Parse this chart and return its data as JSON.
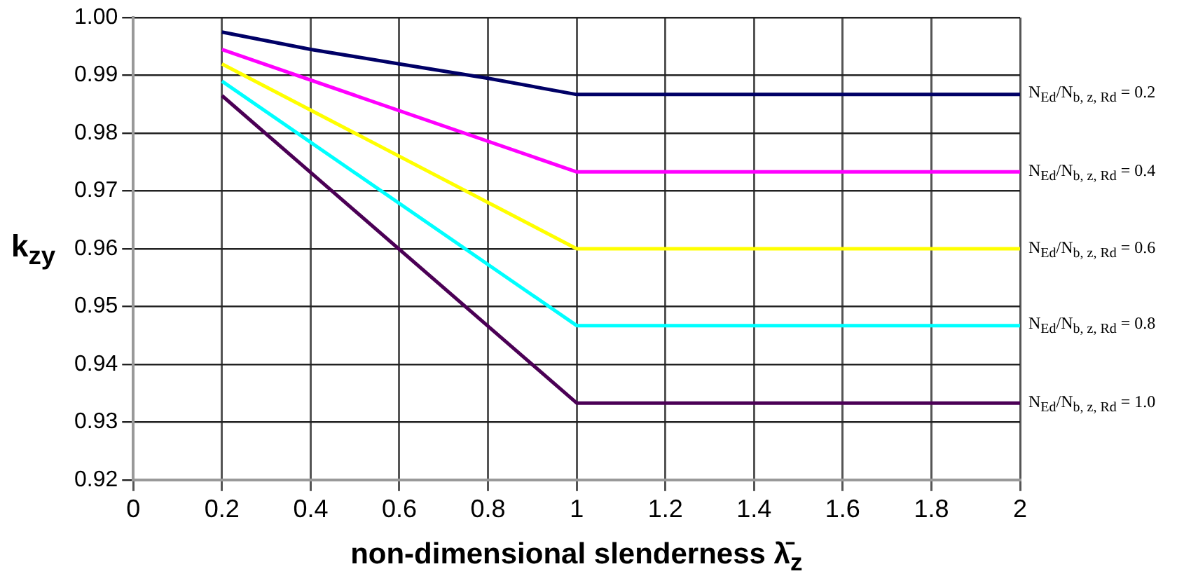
{
  "chart_data": {
    "type": "line",
    "xlabel": "non-dimensional slenderness λ̄$_{z}$",
    "ylabel": "k$_{zy}$",
    "xlim": [
      0,
      2
    ],
    "xticks": [
      0,
      0.2,
      0.4,
      0.6,
      0.8,
      1,
      1.2,
      1.4,
      1.6,
      1.8,
      2
    ],
    "ylim": [
      0.92,
      1.0
    ],
    "yticks": [
      {
        "value": 0.92,
        "label": "0.92"
      },
      {
        "value": 0.93,
        "label": "0.93"
      },
      {
        "value": 0.94,
        "label": "0.94"
      },
      {
        "value": 0.95,
        "label": "0.95"
      },
      {
        "value": 0.96,
        "label": "0.96"
      },
      {
        "value": 0.97,
        "label": "0.97"
      },
      {
        "value": 0.98,
        "label": "0.98"
      },
      {
        "value": 0.99,
        "label": "0.99"
      },
      {
        "value": 1.0,
        "label": "1.00"
      }
    ],
    "grid": true,
    "legend": false,
    "marker": "none",
    "line_style": "solid",
    "series": [
      {
        "name": "N$_{Ed}$/N$_{b, z, Rd}$ = 0.2",
        "color": "#000066",
        "x": [
          0.2,
          0.4,
          0.6,
          0.8,
          1,
          2
        ],
        "values": [
          0.9975,
          0.9945,
          0.992,
          0.9895,
          0.9867,
          0.9867
        ]
      },
      {
        "name": "N$_{Ed}$/N$_{b, z, Rd}$ = 0.4",
        "color": "#ff00ff",
        "x": [
          0.2,
          1,
          2
        ],
        "values": [
          0.9945,
          0.9733,
          0.9733
        ]
      },
      {
        "name": "N$_{Ed}$/N$_{b, z, Rd}$ = 0.6",
        "color": "#ffff00",
        "x": [
          0.2,
          1,
          2
        ],
        "values": [
          0.992,
          0.96,
          0.96
        ]
      },
      {
        "name": "N$_{Ed}$/N$_{b, z, Rd}$ = 0.8",
        "color": "#00ffff",
        "x": [
          0.2,
          1,
          2
        ],
        "values": [
          0.989,
          0.9467,
          0.9467
        ]
      },
      {
        "name": "N$_{Ed}$/N$_{b, z, Rd}$ = 1.0",
        "color": "#4b0055",
        "x": [
          0.2,
          1,
          2
        ],
        "values": [
          0.9865,
          0.9333,
          0.9333
        ]
      }
    ]
  }
}
